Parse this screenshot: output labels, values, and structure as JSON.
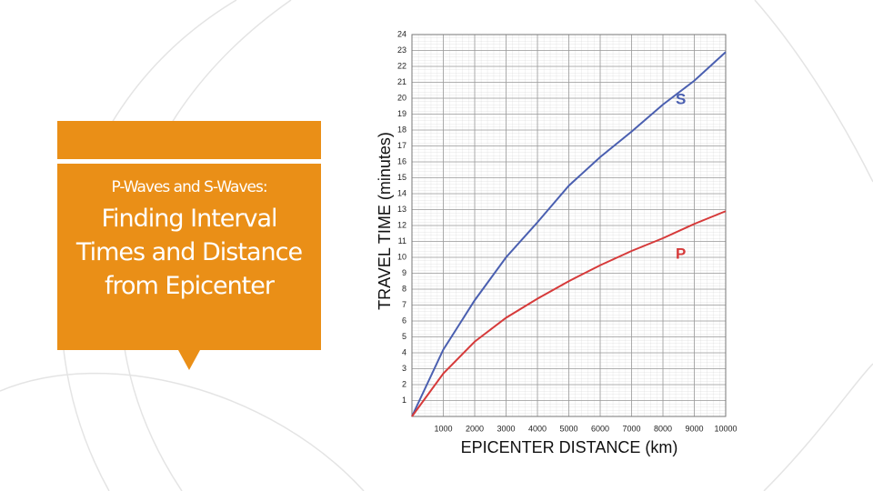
{
  "slide": {
    "subtitle": "P-Waves and S-Waves:",
    "title": "Finding Interval Times and Distance from Epicenter"
  },
  "chart_data": {
    "type": "line",
    "x_label": "EPICENTER DISTANCE (km)",
    "y_label": "TRAVEL TIME (minutes)",
    "x": [
      0,
      1000,
      2000,
      3000,
      4000,
      5000,
      6000,
      7000,
      8000,
      9000,
      10000
    ],
    "series": [
      {
        "name": "S",
        "color": "#4a5fb0",
        "values": [
          0,
          4.2,
          7.3,
          10,
          12.2,
          14.5,
          16.3,
          17.9,
          19.6,
          21.1,
          22.9
        ]
      },
      {
        "name": "P",
        "color": "#d63a3a",
        "values": [
          0,
          2.7,
          4.7,
          6.2,
          7.4,
          8.5,
          9.5,
          10.4,
          11.2,
          12.1,
          12.9
        ]
      }
    ],
    "xlim": [
      0,
      10000
    ],
    "xticks": [
      1000,
      2000,
      3000,
      4000,
      5000,
      6000,
      7000,
      8000,
      9000,
      10000
    ],
    "ylim": [
      0,
      24
    ],
    "yticks": [
      1,
      2,
      3,
      4,
      5,
      6,
      7,
      8,
      9,
      10,
      11,
      12,
      13,
      14,
      15,
      16,
      17,
      18,
      19,
      20,
      21,
      22,
      23,
      24
    ],
    "grid": true
  }
}
